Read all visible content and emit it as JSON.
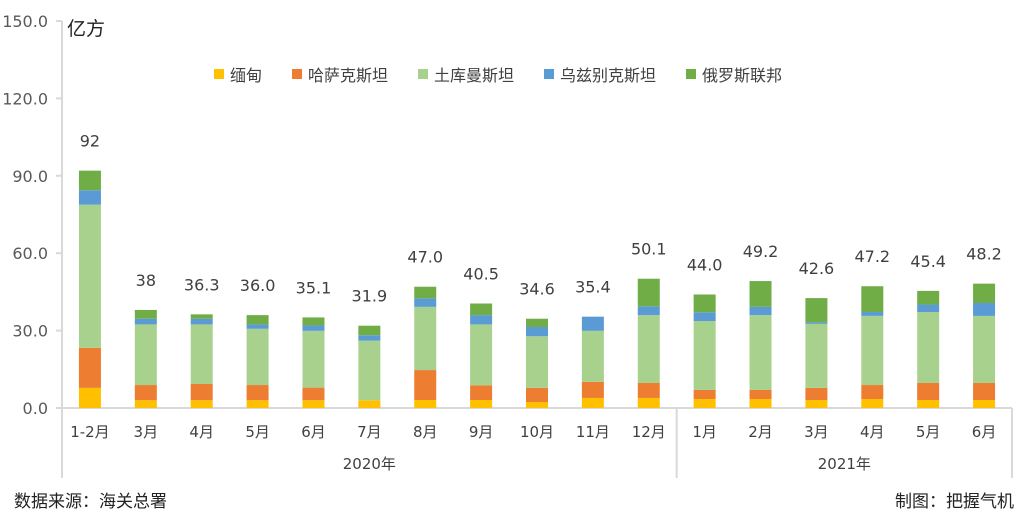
{
  "chart_data": {
    "type": "bar",
    "stacked": true,
    "unit_label": "亿方",
    "ylim": [
      0,
      150
    ],
    "yticks": [
      "0.0",
      "30.0",
      "60.0",
      "90.0",
      "120.0",
      "150.0"
    ],
    "ytick_values": [
      0,
      30,
      60,
      90,
      120,
      150
    ],
    "categories": [
      "1-2月",
      "3月",
      "4月",
      "5月",
      "6月",
      "7月",
      "8月",
      "9月",
      "10月",
      "11月",
      "12月",
      "1月",
      "2月",
      "3月",
      "4月",
      "5月",
      "6月"
    ],
    "groups": [
      {
        "label": "2020年",
        "count": 11
      },
      {
        "label": "2021年",
        "count": 6
      }
    ],
    "totals_labels": [
      "92",
      "38",
      "36.3",
      "36.0",
      "35.1",
      "31.9",
      "47.0",
      "40.5",
      "34.6",
      "35.4",
      "50.1",
      "44.0",
      "49.2",
      "42.6",
      "47.2",
      "45.4",
      "48.2"
    ],
    "legend_position": "top-center",
    "series": [
      {
        "name": "缅甸",
        "color": "#FFC000",
        "values": [
          7.8,
          3.0,
          3.0,
          3.0,
          3.0,
          3.0,
          3.1,
          3.1,
          2.3,
          3.9,
          3.9,
          3.5,
          3.5,
          3.1,
          3.5,
          3.1,
          3.1
        ]
      },
      {
        "name": "哈萨克斯坦",
        "color": "#ED7D31",
        "values": [
          15.5,
          5.9,
          6.3,
          5.9,
          4.9,
          0.0,
          11.6,
          5.7,
          5.5,
          6.2,
          5.8,
          3.5,
          3.5,
          4.7,
          5.4,
          6.6,
          6.6
        ]
      },
      {
        "name": "土库曼斯坦",
        "color": "#A9D18E",
        "values": [
          55.5,
          23.5,
          23.1,
          21.8,
          22.0,
          23.1,
          24.5,
          23.6,
          20.0,
          19.8,
          26.3,
          26.7,
          29.0,
          24.8,
          26.8,
          27.5,
          26.0
        ]
      },
      {
        "name": "乌兹别克斯坦",
        "color": "#5B9BD5",
        "values": [
          5.6,
          2.2,
          2.2,
          1.7,
          2.1,
          2.1,
          3.3,
          3.6,
          3.6,
          5.5,
          3.4,
          3.4,
          3.2,
          0.6,
          1.5,
          2.9,
          5.0
        ]
      },
      {
        "name": "俄罗斯联邦",
        "color": "#70AD47",
        "values": [
          7.6,
          3.4,
          1.7,
          3.6,
          3.1,
          3.7,
          4.5,
          4.5,
          3.2,
          0.0,
          10.7,
          6.9,
          10.0,
          9.4,
          10.0,
          5.3,
          7.5
        ]
      }
    ]
  },
  "footer": {
    "source": "数据来源：海关总署",
    "credit": "制图：把握气机"
  }
}
